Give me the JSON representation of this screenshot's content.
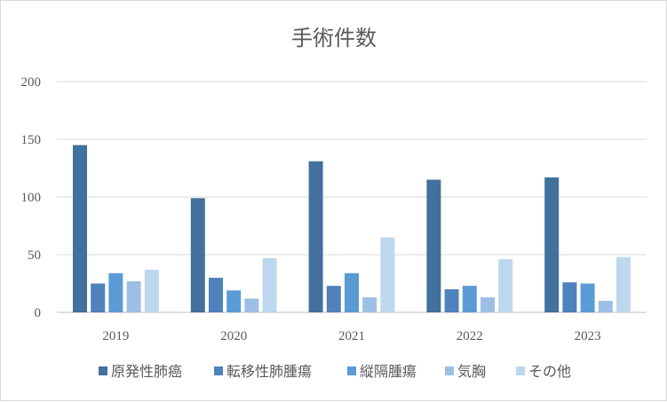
{
  "chart_data": {
    "type": "bar",
    "title": "手術件数",
    "categories": [
      "2019",
      "2020",
      "2021",
      "2022",
      "2023"
    ],
    "series": [
      {
        "name": "原発性肺癌",
        "color": "#41719c",
        "values": [
          145,
          99,
          131,
          115,
          117
        ]
      },
      {
        "name": "転移性肺腫瘍",
        "color": "#4f81bd",
        "values": [
          25,
          30,
          23,
          20,
          26
        ]
      },
      {
        "name": "縦隔腫瘍",
        "color": "#5b9bd5",
        "values": [
          34,
          19,
          34,
          23,
          25
        ]
      },
      {
        "name": "気胸",
        "color": "#9dbfe5",
        "values": [
          27,
          12,
          13,
          13,
          10
        ]
      },
      {
        "name": "その他",
        "color": "#bdd7ee",
        "values": [
          37,
          47,
          65,
          46,
          48
        ]
      }
    ],
    "yticks": [
      "0",
      "50",
      "100",
      "150",
      "200"
    ],
    "ylim": [
      0,
      200
    ],
    "xlabel": "",
    "ylabel": "",
    "grid": true,
    "legend_position": "bottom"
  }
}
